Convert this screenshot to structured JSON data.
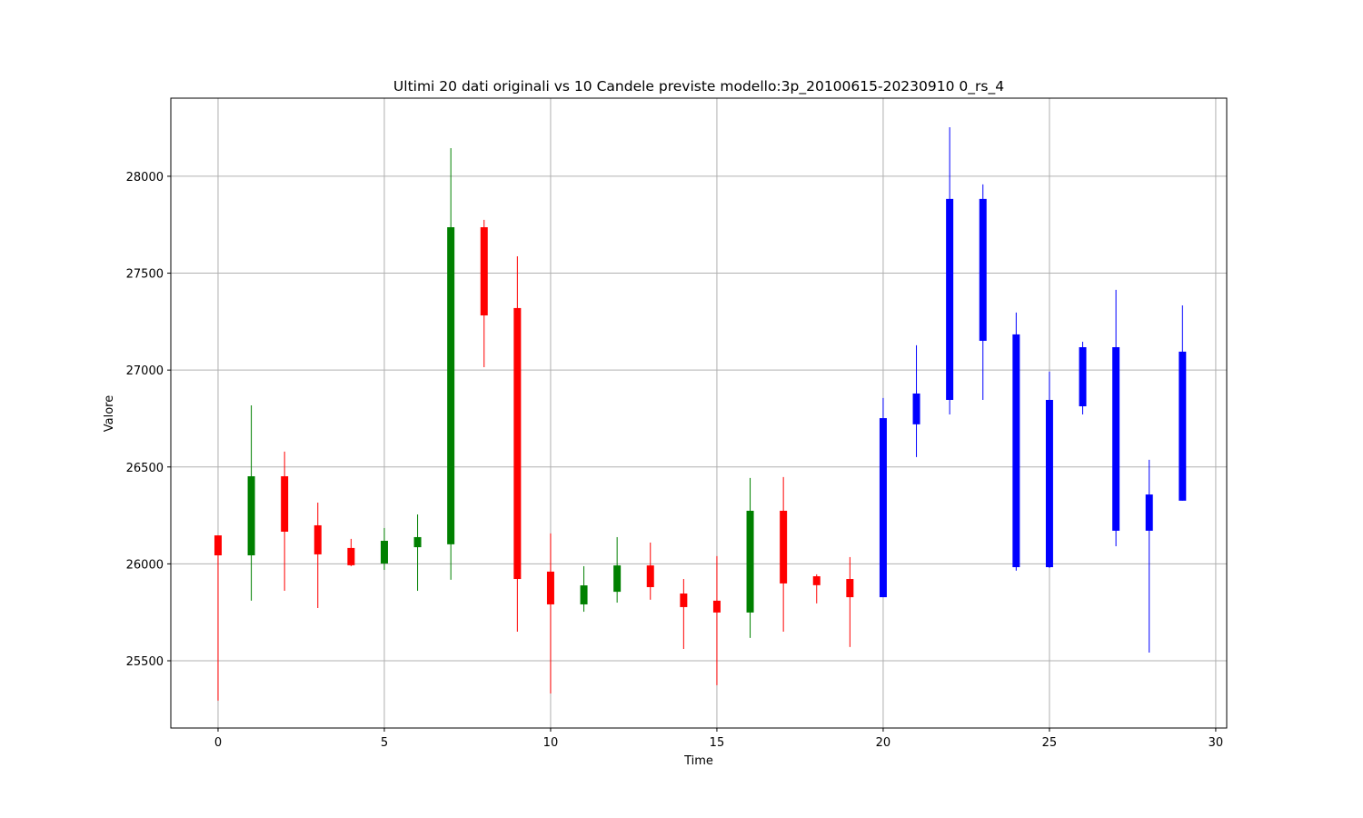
{
  "chart_data": {
    "type": "candlestick",
    "title": "Ultimi 20 dati originali vs 10 Candele previste modello:3p_20100615-20230910 0_rs_4",
    "x_label": "Time",
    "y_label": "Valore",
    "x": [
      0,
      1,
      2,
      3,
      4,
      5,
      6,
      7,
      8,
      9,
      10,
      11,
      12,
      13,
      14,
      15,
      16,
      17,
      18,
      19,
      20,
      21,
      22,
      23,
      24,
      25,
      26,
      27,
      28,
      29
    ],
    "open": [
      26147,
      26044,
      26452,
      26199,
      26082,
      26002,
      26086,
      26101,
      27737,
      27320,
      25960,
      25791,
      25856,
      25992,
      25847,
      25810,
      25749,
      26274,
      25936,
      25922,
      25828,
      26720,
      26846,
      27151,
      25983,
      25983,
      26813,
      26171,
      26171,
      26326
    ],
    "high": [
      26147,
      26818,
      26579,
      26316,
      26129,
      26185,
      26255,
      28145,
      27775,
      27587,
      26157,
      25988,
      26138,
      26110,
      25922,
      26040,
      26443,
      26448,
      25946,
      26035,
      26856,
      27128,
      28253,
      27958,
      27297,
      26992,
      27146,
      27414,
      26537,
      27334
    ],
    "low": [
      25294,
      25810,
      25861,
      25772,
      25988,
      25969,
      25861,
      25918,
      27015,
      25650,
      25331,
      25753,
      25800,
      25815,
      25561,
      25374,
      25618,
      25650,
      25796,
      25571,
      25828,
      26551,
      26771,
      26846,
      25965,
      25979,
      26771,
      26091,
      25542,
      26326
    ],
    "close": [
      26044,
      26452,
      26166,
      26049,
      25993,
      26119,
      26138,
      27737,
      27282,
      25922,
      25791,
      25889,
      25992,
      25880,
      25777,
      25749,
      26274,
      25899,
      25890,
      25828,
      26752,
      26879,
      27883,
      27883,
      27184,
      26846,
      27118,
      27118,
      26358,
      27095
    ],
    "colors": [
      "red",
      "green",
      "red",
      "red",
      "red",
      "green",
      "green",
      "green",
      "red",
      "red",
      "red",
      "green",
      "green",
      "red",
      "red",
      "red",
      "green",
      "red",
      "red",
      "red",
      "blue",
      "blue",
      "blue",
      "blue",
      "blue",
      "blue",
      "blue",
      "blue",
      "blue",
      "blue"
    ],
    "xlim": [
      -1.42,
      30.33
    ],
    "ylim": [
      25153,
      28403
    ],
    "xticks": [
      0,
      5,
      10,
      15,
      20,
      25,
      30
    ],
    "yticks": [
      25500,
      26000,
      26500,
      27000,
      27500,
      28000
    ],
    "grid": true
  }
}
